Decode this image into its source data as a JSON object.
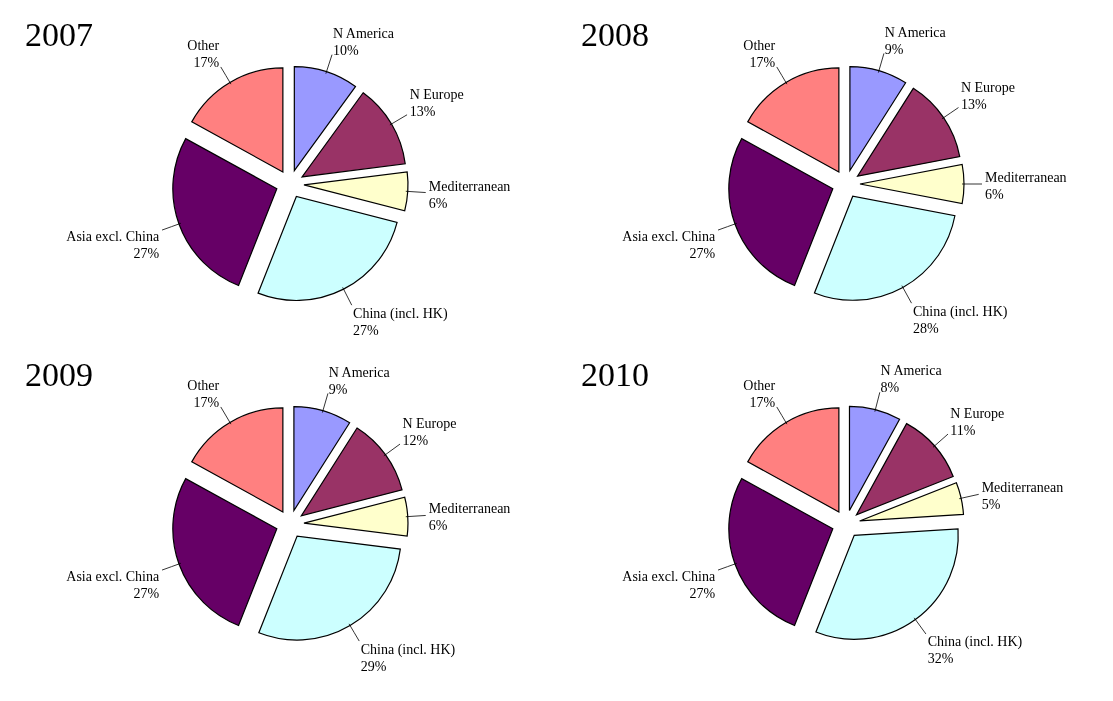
{
  "chart_data": [
    {
      "type": "pie",
      "title": "2007",
      "categories": [
        "N America",
        "N Europe",
        "Mediterranean",
        "China (incl. HK)",
        "Asia excl. China",
        "Other"
      ],
      "values": [
        10,
        13,
        6,
        27,
        27,
        17
      ],
      "value_labels": [
        "10%",
        "13%",
        "6%",
        "27%",
        "27%",
        "17%"
      ],
      "colors": [
        "#9999ff",
        "#993366",
        "#ffffcc",
        "#ccffff",
        "#660066",
        "#ff8080"
      ]
    },
    {
      "type": "pie",
      "title": "2008",
      "categories": [
        "N America",
        "N Europe",
        "Mediterranean",
        "China (incl. HK)",
        "Asia excl. China",
        "Other"
      ],
      "values": [
        9,
        13,
        6,
        28,
        27,
        17
      ],
      "value_labels": [
        "9%",
        "13%",
        "6%",
        "28%",
        "27%",
        "17%"
      ],
      "colors": [
        "#9999ff",
        "#993366",
        "#ffffcc",
        "#ccffff",
        "#660066",
        "#ff8080"
      ]
    },
    {
      "type": "pie",
      "title": "2009",
      "categories": [
        "N America",
        "N Europe",
        "Mediterranean",
        "China (incl. HK)",
        "Asia excl. China",
        "Other"
      ],
      "values": [
        9,
        12,
        6,
        29,
        27,
        17
      ],
      "value_labels": [
        "9%",
        "12%",
        "6%",
        "29%",
        "27%",
        "17%"
      ],
      "colors": [
        "#9999ff",
        "#993366",
        "#ffffcc",
        "#ccffff",
        "#660066",
        "#ff8080"
      ]
    },
    {
      "type": "pie",
      "title": "2010",
      "categories": [
        "N America",
        "N Europe",
        "Mediterranean",
        "China (incl. HK)",
        "Asia excl. China",
        "Other"
      ],
      "values": [
        8,
        11,
        5,
        32,
        27,
        17
      ],
      "value_labels": [
        "8%",
        "11%",
        "5%",
        "32%",
        "27%",
        "17%"
      ],
      "colors": [
        "#9999ff",
        "#993366",
        "#ffffcc",
        "#ccffff",
        "#660066",
        "#ff8080"
      ]
    }
  ]
}
